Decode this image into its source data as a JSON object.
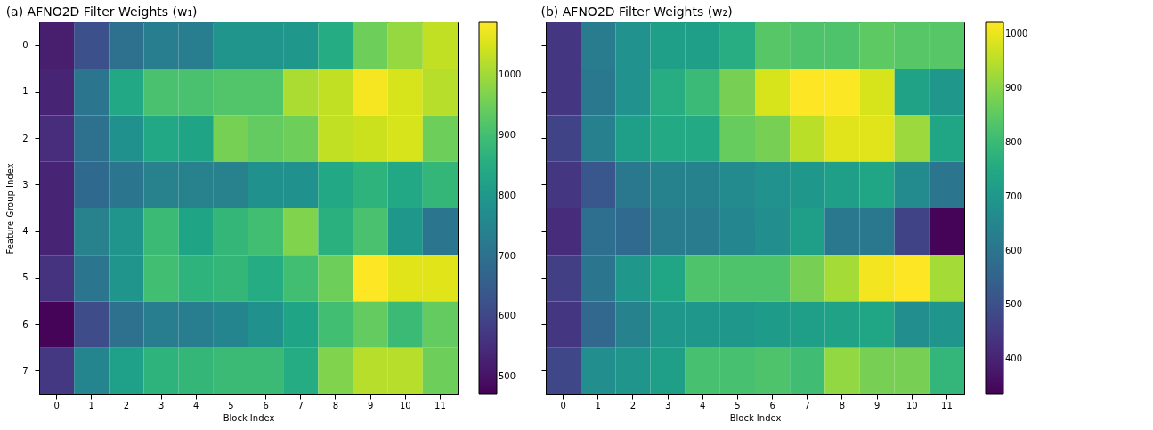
{
  "chart_data": [
    {
      "type": "heatmap",
      "title": "(a) AFNO2D Filter Weights (w₁)",
      "xlabel": "Block Index",
      "ylabel": "Feature Group Index",
      "categories": [
        "0",
        "1",
        "2",
        "3",
        "4",
        "5",
        "6",
        "7",
        "8",
        "9",
        "10",
        "11"
      ],
      "y_categories": [
        "0",
        "1",
        "2",
        "3",
        "4",
        "5",
        "6",
        "7"
      ],
      "clim": [
        471,
        1087
      ],
      "cticks": [
        500,
        600,
        700,
        800,
        900,
        1000
      ],
      "cells": [
        [
          520,
          620,
          700,
          730,
          730,
          790,
          790,
          800,
          850,
          950,
          990,
          1030
        ],
        [
          530,
          710,
          840,
          910,
          910,
          920,
          920,
          1010,
          1030,
          1080,
          1050,
          1020
        ],
        [
          550,
          700,
          780,
          840,
          830,
          960,
          940,
          950,
          1030,
          1040,
          1050,
          950
        ],
        [
          530,
          680,
          710,
          740,
          740,
          740,
          780,
          780,
          840,
          870,
          840,
          880
        ],
        [
          530,
          740,
          790,
          890,
          830,
          880,
          900,
          970,
          860,
          910,
          800,
          710
        ],
        [
          560,
          710,
          790,
          900,
          870,
          880,
          850,
          900,
          950,
          1087,
          1060,
          1060
        ],
        [
          475,
          610,
          700,
          730,
          730,
          750,
          780,
          830,
          900,
          940,
          890,
          940
        ],
        [
          570,
          750,
          820,
          870,
          880,
          890,
          890,
          850,
          970,
          1020,
          1020,
          950
        ]
      ]
    },
    {
      "type": "heatmap",
      "title": "(b) AFNO2D Filter Weights (w₂)",
      "xlabel": "Block Index",
      "categories": [
        "0",
        "1",
        "2",
        "3",
        "4",
        "5",
        "6",
        "7",
        "8",
        "9",
        "10",
        "11"
      ],
      "y_categories": [
        "0",
        "1",
        "2",
        "3",
        "4",
        "5",
        "6",
        "7"
      ],
      "tick_labels": "x",
      "clim": [
        335,
        1021
      ],
      "cticks": [
        400,
        500,
        600,
        700,
        800,
        900,
        1000
      ],
      "cells": [
        [
          440,
          620,
          680,
          720,
          720,
          760,
          840,
          830,
          830,
          850,
          840,
          840
        ],
        [
          440,
          610,
          680,
          760,
          800,
          880,
          980,
          1021,
          1020,
          980,
          730,
          700
        ],
        [
          470,
          630,
          720,
          750,
          750,
          860,
          880,
          950,
          990,
          990,
          920,
          740
        ],
        [
          440,
          520,
          610,
          640,
          640,
          660,
          680,
          700,
          720,
          740,
          660,
          600
        ],
        [
          420,
          580,
          570,
          620,
          620,
          650,
          670,
          720,
          610,
          610,
          470,
          340
        ],
        [
          460,
          600,
          700,
          740,
          830,
          830,
          830,
          880,
          930,
          1010,
          1021,
          930
        ],
        [
          440,
          560,
          640,
          700,
          700,
          700,
          710,
          720,
          730,
          740,
          670,
          690
        ],
        [
          480,
          670,
          690,
          720,
          820,
          820,
          830,
          810,
          910,
          880,
          880,
          790
        ]
      ]
    }
  ]
}
